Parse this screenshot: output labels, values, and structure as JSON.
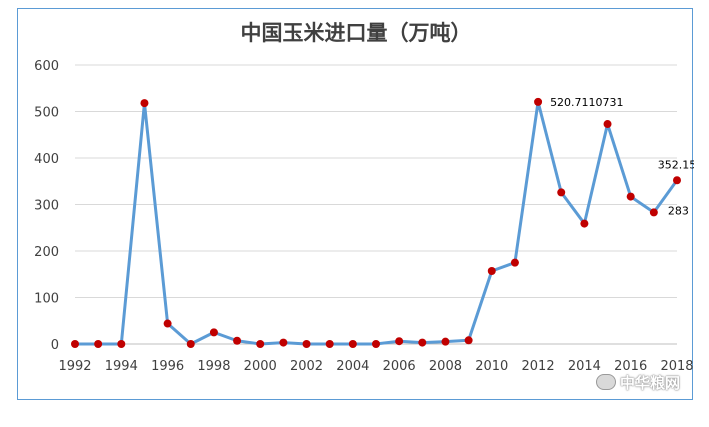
{
  "chart_data": {
    "type": "line",
    "title": "中国玉米进口量（万吨）",
    "x_tick_labels": [
      "1992",
      "1994",
      "1996",
      "1998",
      "2000",
      "2002",
      "2004",
      "2006",
      "2008",
      "2010",
      "2012",
      "2014",
      "2016",
      "2018"
    ],
    "y_tick_labels": [
      "0",
      "100",
      "200",
      "300",
      "400",
      "500",
      "600"
    ],
    "ylim": [
      0,
      600
    ],
    "xlim": [
      1992,
      2018
    ],
    "grid": "horizontal",
    "line_color": "#5b9bd5",
    "marker_color": "#c00000",
    "series": [
      {
        "x": [
          1992,
          1993,
          1994,
          1995,
          1996,
          1997,
          1998,
          1999,
          2000,
          2001,
          2002,
          2003,
          2004,
          2005,
          2006,
          2007,
          2008,
          2009,
          2010,
          2011,
          2012,
          2013,
          2014,
          2015,
          2016,
          2017,
          2018
        ],
        "values": [
          0,
          0,
          0,
          518,
          44,
          0,
          25,
          7,
          0,
          3,
          0,
          0,
          0,
          0,
          6,
          3,
          5,
          8,
          157,
          175,
          520.7110731,
          326,
          259,
          473,
          317,
          283,
          352.15
        ]
      }
    ],
    "data_labels": [
      {
        "x": 2012,
        "text": "520.7110731"
      },
      {
        "x": 2017,
        "text": "283"
      },
      {
        "x": 2018,
        "text": "352.15"
      }
    ]
  },
  "watermark": "中华粮网"
}
